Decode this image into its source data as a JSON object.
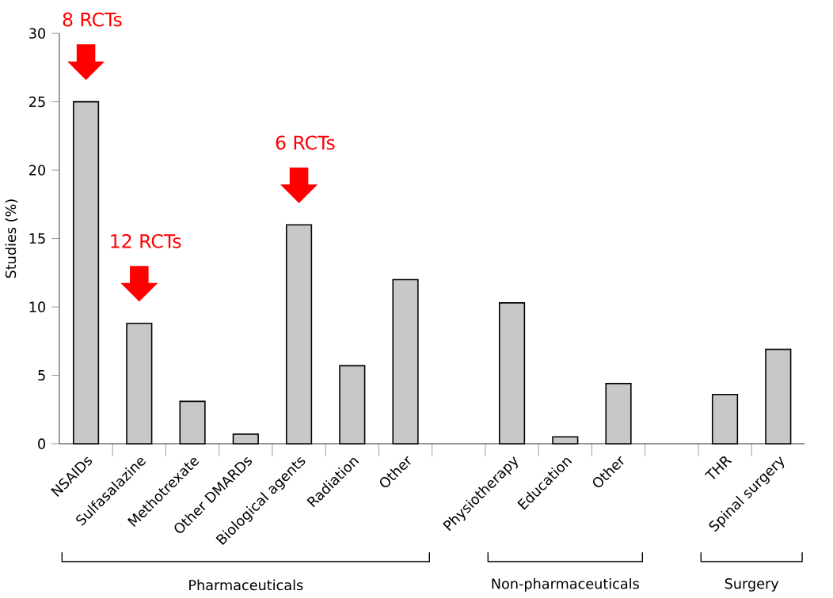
{
  "chart_data": {
    "type": "bar",
    "ylabel": "Studies (%)",
    "categories": [
      "NSAIDs",
      "Sulfasalazine",
      "Methotrexate",
      "Other DMARDs",
      "Biological agents",
      "Radiation",
      "Other",
      null,
      "Physiotherapy",
      "Education",
      "Other",
      null,
      "THR",
      "Spinal surgery"
    ],
    "values": [
      25.0,
      8.8,
      3.1,
      0.7,
      16.0,
      5.7,
      12.0,
      null,
      10.3,
      0.5,
      4.4,
      null,
      3.6,
      6.9
    ],
    "color": "#c8c8c8",
    "ylim": [
      0,
      30
    ],
    "yticks": [
      0,
      5,
      10,
      15,
      20,
      25,
      30
    ],
    "grid": false,
    "annotations": [
      "8 RCTs",
      "12 RCTs",
      "6 RCTs",
      "Pharmaceuticals",
      "Non-pharmaceuticals",
      "Surgery"
    ]
  }
}
